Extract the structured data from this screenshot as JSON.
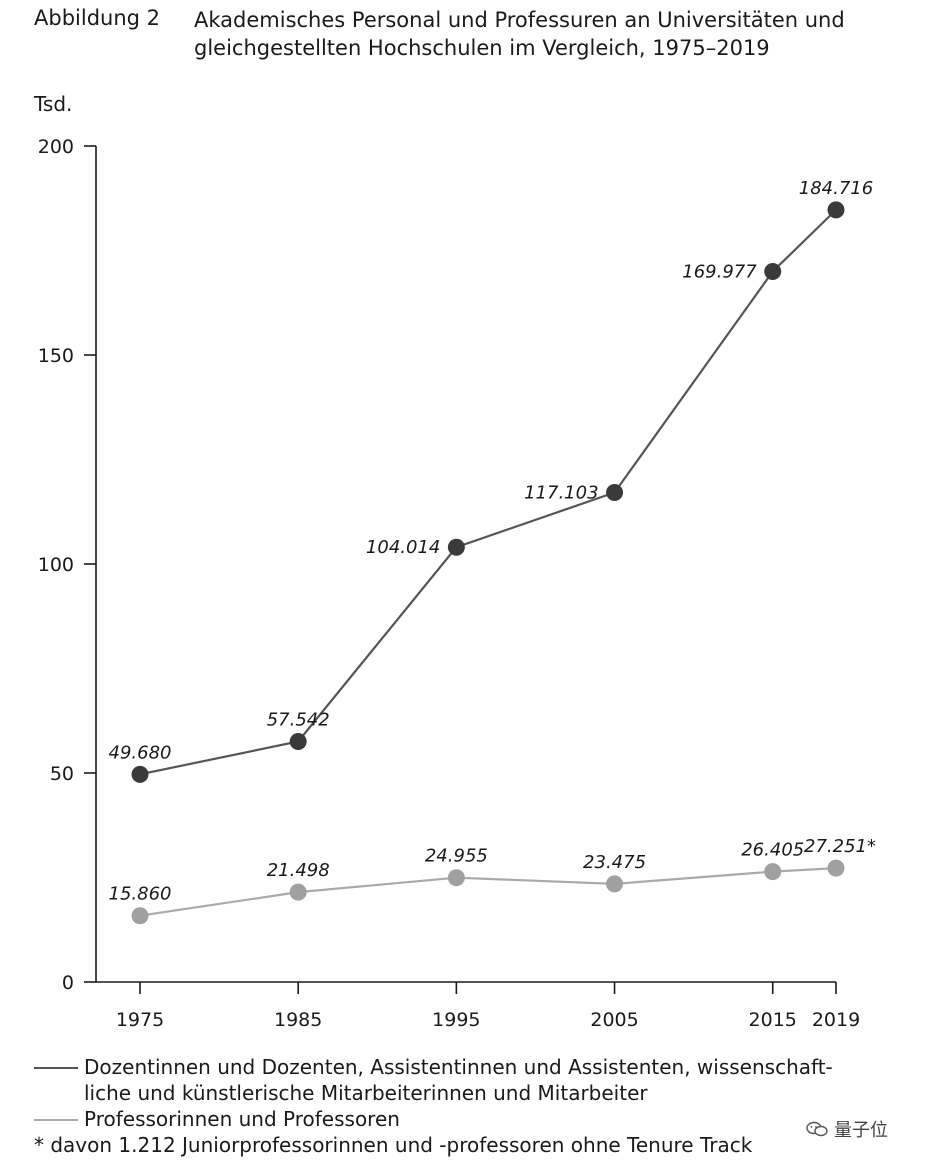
{
  "figure": {
    "label": "Abbildung 2",
    "title": "Akademisches Personal und Professuren an Universitäten und gleichgestellten Hochschulen im Vergleich, 1975–2019",
    "unit": "Tsd."
  },
  "chart_data": {
    "type": "line",
    "ylim": [
      0,
      200
    ],
    "yticks": [
      "0",
      "50",
      "100",
      "150",
      "200"
    ],
    "ytick_values": [
      0,
      50,
      100,
      150,
      200
    ],
    "categories": [
      "1975",
      "1985",
      "1995",
      "2005",
      "2015",
      "2019"
    ],
    "ylabel": "Tsd.",
    "grid": false,
    "legend_position": "bottom",
    "series": [
      {
        "name": "Dozentinnen und Dozenten, Assistentinnen und Assistenten, wissenschaftliche und künstlerische Mitarbeiterinnen und Mitarbeiter",
        "values": [
          49.68,
          57.542,
          104.014,
          117.103,
          169.977,
          184.716
        ],
        "labels": [
          "49.680",
          "57.542",
          "104.014",
          "117.103",
          "169.977",
          "184.716"
        ],
        "color": "#555555",
        "marker_color": "#3a3a3a"
      },
      {
        "name": "Professorinnen und Professoren",
        "values": [
          15.86,
          21.498,
          24.955,
          23.475,
          26.405,
          27.251
        ],
        "labels": [
          "15.860",
          "21.498",
          "24.955",
          "23.475",
          "26.405",
          "27.251*"
        ],
        "color": "#aaaaaa",
        "marker_color": "#a0a0a0"
      }
    ]
  },
  "legend": {
    "series1_line1": "Dozentinnen und Dozenten, Assistentinnen und Assistenten, wissenschaft-",
    "series1_line2": "liche und künstlerische Mitarbeiterinnen und Mitarbeiter",
    "series2": "Professorinnen und Professoren",
    "footnote": "* davon 1.212 Juniorprofessorinnen und -professoren ohne Tenure Track"
  },
  "watermark": {
    "text": "量子位",
    "icon": "wechat-icon"
  }
}
